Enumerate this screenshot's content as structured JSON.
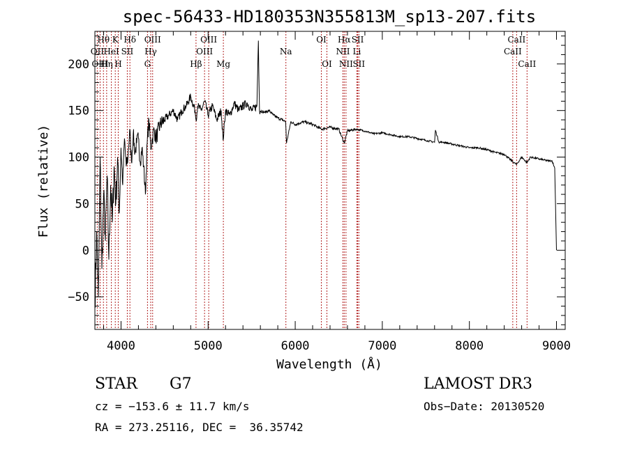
{
  "chart_data": {
    "type": "line",
    "title": "spec-56433-HD180353N355813M_sp13-207.fits",
    "xlabel": "Wavelength (Å)",
    "ylabel": "Flux (relative)",
    "xlim": [
      3700,
      9100
    ],
    "ylim": [
      -85,
      235
    ],
    "xticks": [
      4000,
      5000,
      6000,
      7000,
      8000,
      9000
    ],
    "yticks": [
      -50,
      0,
      50,
      100,
      150,
      200
    ],
    "series": [
      {
        "name": "flux",
        "x": [
          3700,
          3720,
          3740,
          3760,
          3780,
          3800,
          3820,
          3840,
          3860,
          3880,
          3900,
          3920,
          3940,
          3960,
          3980,
          4000,
          4020,
          4040,
          4060,
          4080,
          4100,
          4120,
          4140,
          4160,
          4180,
          4200,
          4220,
          4240,
          4260,
          4280,
          4300,
          4320,
          4340,
          4360,
          4380,
          4400,
          4450,
          4500,
          4550,
          4600,
          4650,
          4700,
          4750,
          4800,
          4850,
          4861,
          4880,
          4920,
          4960,
          5000,
          5050,
          5100,
          5150,
          5172,
          5200,
          5250,
          5300,
          5350,
          5400,
          5450,
          5500,
          5560,
          5577,
          5590,
          5650,
          5700,
          5750,
          5800,
          5850,
          5890,
          5900,
          5950,
          6000,
          6100,
          6200,
          6300,
          6400,
          6500,
          6563,
          6600,
          6700,
          6800,
          6900,
          7000,
          7100,
          7200,
          7300,
          7400,
          7500,
          7600,
          7610,
          7650,
          7700,
          7800,
          7900,
          8000,
          8100,
          8200,
          8300,
          8400,
          8498,
          8542,
          8600,
          8662,
          8700,
          8800,
          8900,
          8950,
          8980,
          9000
        ],
        "y": [
          -60,
          20,
          -50,
          100,
          -20,
          60,
          10,
          80,
          -10,
          70,
          30,
          90,
          50,
          100,
          40,
          110,
          70,
          120,
          90,
          100,
          130,
          95,
          125,
          105,
          115,
          120,
          95,
          110,
          90,
          60,
          115,
          140,
          110,
          120,
          130,
          120,
          135,
          140,
          145,
          150,
          140,
          150,
          155,
          165,
          150,
          140,
          155,
          150,
          160,
          145,
          155,
          140,
          150,
          118,
          150,
          145,
          158,
          150,
          155,
          158,
          150,
          155,
          225,
          150,
          148,
          150,
          145,
          142,
          140,
          138,
          115,
          138,
          135,
          138,
          135,
          130,
          132,
          130,
          115,
          128,
          130,
          128,
          125,
          126,
          124,
          122,
          122,
          120,
          118,
          116,
          129,
          116,
          116,
          114,
          112,
          110,
          110,
          108,
          105,
          103,
          95,
          92,
          100,
          94,
          100,
          98,
          96,
          96,
          88,
          0
        ]
      }
    ],
    "spectral_lines": [
      {
        "label": "Hθ",
        "row": 1,
        "x": 3798
      },
      {
        "label": "K",
        "row": 1,
        "x": 3934
      },
      {
        "label": "Hδ",
        "row": 1,
        "x": 4102
      },
      {
        "label": "OIII",
        "row": 1,
        "x": 4363
      },
      {
        "label": "OIII",
        "row": 1,
        "x": 5007
      },
      {
        "label": "OI",
        "row": 1,
        "x": 6300
      },
      {
        "label": "Hα",
        "row": 1,
        "x": 6563
      },
      {
        "label": "SII",
        "row": 1,
        "x": 6717
      },
      {
        "label": "CaII",
        "row": 1,
        "x": 8542
      },
      {
        "label": "OII",
        "row": 2,
        "x": 3727
      },
      {
        "label": "HeI",
        "row": 2,
        "x": 3889
      },
      {
        "label": "SII",
        "row": 2,
        "x": 4072
      },
      {
        "label": "Hγ",
        "row": 2,
        "x": 4341
      },
      {
        "label": "OIII",
        "row": 2,
        "x": 4959
      },
      {
        "label": "Na",
        "row": 2,
        "x": 5893
      },
      {
        "label": "NII",
        "row": 2,
        "x": 6548
      },
      {
        "label": "Li",
        "row": 2,
        "x": 6708
      },
      {
        "label": "CaII",
        "row": 2,
        "x": 8498
      },
      {
        "label": "OIII",
        "row": 3,
        "x": 3760
      },
      {
        "label": "Hη",
        "row": 3,
        "x": 3835
      },
      {
        "label": "H",
        "row": 3,
        "x": 3968
      },
      {
        "label": "G",
        "row": 3,
        "x": 4304
      },
      {
        "label": "Hβ",
        "row": 3,
        "x": 4861
      },
      {
        "label": "Mg",
        "row": 3,
        "x": 5175
      },
      {
        "label": "OI",
        "row": 3,
        "x": 6364
      },
      {
        "label": "NII",
        "row": 3,
        "x": 6583
      },
      {
        "label": "SII",
        "row": 3,
        "x": 6731
      },
      {
        "label": "CaII",
        "row": 3,
        "x": 8662
      }
    ]
  },
  "info": {
    "class": "STAR",
    "subclass": "G7",
    "survey": "LAMOST DR3",
    "cz": "cz = −153.6 ± 11.7 km/s",
    "obs_date": "Obs−Date: 20130520",
    "coords": "RA = 273.25116, DEC =  36.35742"
  },
  "colors": {
    "axis": "#000000",
    "line_marker": "#b22222",
    "background": "#ffffff"
  }
}
